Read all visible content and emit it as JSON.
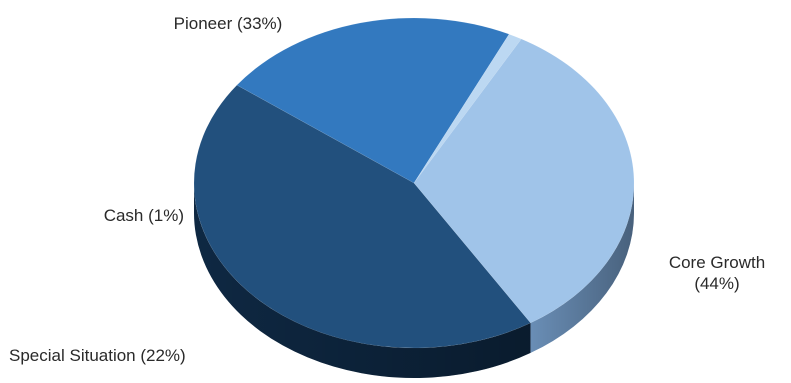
{
  "chart_data": {
    "type": "pie",
    "style": "3d",
    "slices": [
      {
        "name": "Core Growth",
        "value": 44,
        "label_lines": [
          "Core Growth",
          "(44%)"
        ],
        "color": "#22507d",
        "side_color": "#0f2a46"
      },
      {
        "name": "Special Situation",
        "value": 22,
        "label_lines": [
          "Special Situation (22%)"
        ],
        "color": "#3379bf",
        "side_color": "#1b426b"
      },
      {
        "name": "Cash",
        "value": 1,
        "label_lines": [
          "Cash (1%)"
        ],
        "color": "#bcd8f2",
        "side_color": "#6f8fb0"
      },
      {
        "name": "Pioneer",
        "value": 33,
        "label_lines": [
          "Pioneer (33%)"
        ],
        "color": "#a0c4e9",
        "side_color": "#6f95bf"
      }
    ]
  }
}
